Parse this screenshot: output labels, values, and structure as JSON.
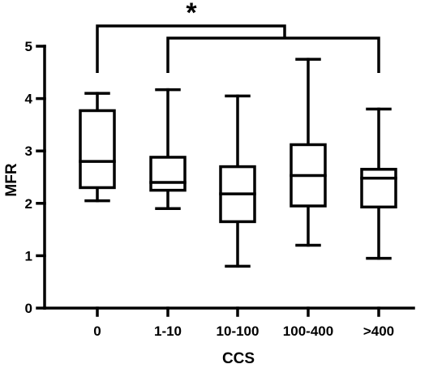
{
  "chart_data": {
    "type": "box",
    "xlabel": "CCS",
    "ylabel": "MFR",
    "ylim": [
      0,
      5
    ],
    "yticks": [
      "0",
      "1",
      "2",
      "3",
      "4",
      "5"
    ],
    "categories": [
      "0",
      "1-10",
      "10-100",
      "100-400",
      ">400"
    ],
    "boxes": [
      {
        "min": 2.05,
        "q1": 2.3,
        "median": 2.8,
        "q3": 3.77,
        "max": 4.1
      },
      {
        "min": 1.9,
        "q1": 2.25,
        "median": 2.4,
        "q3": 2.88,
        "max": 4.17
      },
      {
        "min": 0.8,
        "q1": 1.65,
        "median": 2.18,
        "q3": 2.7,
        "max": 4.05
      },
      {
        "min": 1.2,
        "q1": 1.95,
        "median": 2.53,
        "q3": 3.12,
        "max": 4.75
      },
      {
        "min": 0.95,
        "q1": 1.93,
        "median": 2.48,
        "q3": 2.65,
        "max": 3.8
      }
    ],
    "significance": {
      "label": "*",
      "bracket_groups": [
        [
          "0",
          "1-10"
        ],
        [
          "1-10",
          ">400"
        ]
      ]
    },
    "grid": false,
    "legend": "none"
  }
}
